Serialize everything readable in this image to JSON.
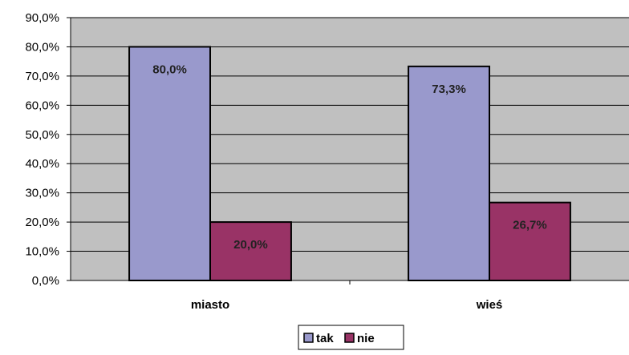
{
  "chart_data": {
    "type": "bar",
    "categories": [
      "miasto",
      "wieś"
    ],
    "series": [
      {
        "name": "tak",
        "values": [
          80.0,
          73.3
        ],
        "labels": [
          "80,0%",
          "73,3%"
        ],
        "color": "#9999cc"
      },
      {
        "name": "nie",
        "values": [
          20.0,
          26.7
        ],
        "labels": [
          "20,0%",
          "26,7%"
        ],
        "color": "#993366"
      }
    ],
    "ylim": [
      0,
      90
    ],
    "yticks": [
      {
        "value": 0,
        "label": "0,0%"
      },
      {
        "value": 10,
        "label": "10,0%"
      },
      {
        "value": 20,
        "label": "20,0%"
      },
      {
        "value": 30,
        "label": "30,0%"
      },
      {
        "value": 40,
        "label": "40,0%"
      },
      {
        "value": 50,
        "label": "50,0%"
      },
      {
        "value": 60,
        "label": "60,0%"
      },
      {
        "value": 70,
        "label": "70,0%"
      },
      {
        "value": 80,
        "label": "80,0%"
      },
      {
        "value": 90,
        "label": "90,0%"
      }
    ],
    "grid": true,
    "legend_position": "bottom",
    "plot_background": "#c0c0c0"
  }
}
